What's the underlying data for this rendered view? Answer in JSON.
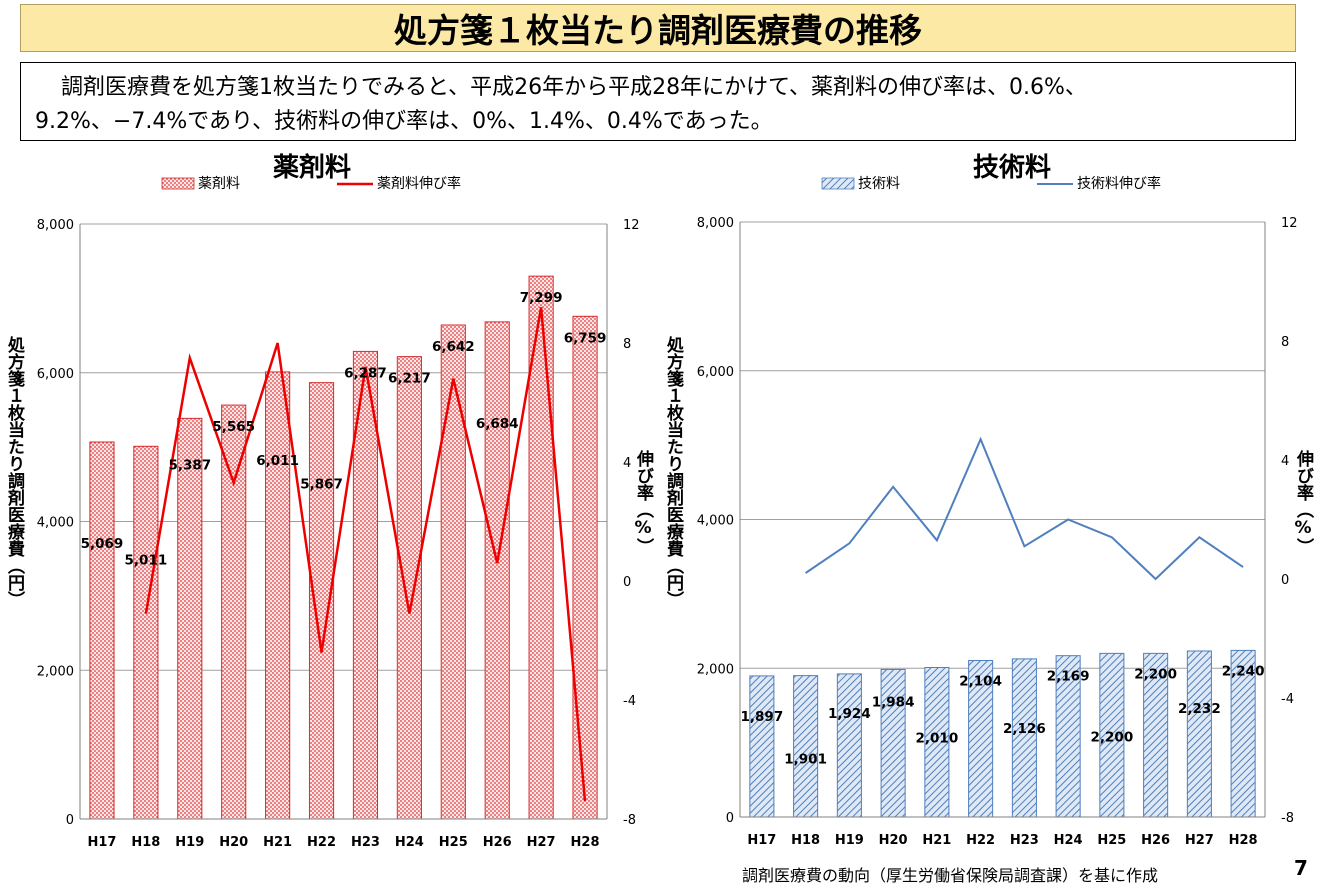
{
  "header": {
    "title": "処方箋１枚当たり調剤医療費の推移",
    "summary_line1": "調剤医療費を処方箋1枚当たりでみると、平成26年から平成28年にかけて、薬剤料の伸び率は、0.6%、",
    "summary_line2": "9.2%、−7.4%であり、技術料の伸び率は、0%、1.4%、0.4%であった。"
  },
  "footer": {
    "source": "調剤医療費の動向（厚生労働省保険局調査課）を基に作成",
    "page_number": "7"
  },
  "colors": {
    "drug_bar": "#f4a6a6",
    "drug_line": "#ee0000",
    "tech_bar": "#7fa3d0",
    "tech_line": "#4f7fbf"
  },
  "chart_data": [
    {
      "type": "bar",
      "title": "薬剤料",
      "categories": [
        "H17",
        "H18",
        "H19",
        "H20",
        "H21",
        "H22",
        "H23",
        "H24",
        "H25",
        "H26",
        "H27",
        "H28"
      ],
      "series": [
        {
          "name": "薬剤料",
          "axis": "left",
          "values": [
            5069,
            5011,
            5387,
            5565,
            6011,
            5867,
            6287,
            6217,
            6642,
            6684,
            7299,
            6759
          ]
        },
        {
          "name": "薬剤料伸び率",
          "type": "line",
          "axis": "right",
          "values": [
            null,
            -1.1,
            7.5,
            3.3,
            8.0,
            -2.4,
            7.2,
            -1.1,
            6.8,
            0.6,
            9.2,
            -7.4
          ]
        }
      ],
      "data_labels": [
        "5,069",
        "5,011",
        "5,387",
        "5,565",
        "6,011",
        "5,867",
        "6,287",
        "6,217",
        "6,642",
        "6,684",
        "7,299",
        "6,759"
      ],
      "ylabel": "処方箋１枚当たり調剤医療費（円）",
      "y2label": "伸び率（%）",
      "ylim": [
        0,
        8000
      ],
      "y2lim": [
        -8,
        12
      ],
      "yticks": [
        "0",
        "2,000",
        "4,000",
        "6,000",
        "8,000"
      ],
      "y2ticks": [
        "-8",
        "-4",
        "0",
        "4",
        "8",
        "12"
      ],
      "grid": true,
      "legend": "top"
    },
    {
      "type": "bar",
      "title": "技術料",
      "categories": [
        "H17",
        "H18",
        "H19",
        "H20",
        "H21",
        "H22",
        "H23",
        "H24",
        "H25",
        "H26",
        "H27",
        "H28"
      ],
      "series": [
        {
          "name": "技術料",
          "axis": "left",
          "values": [
            1897,
            1901,
            1924,
            1984,
            2010,
            2104,
            2126,
            2169,
            2200,
            2200,
            2232,
            2240
          ]
        },
        {
          "name": "技術料伸び率",
          "type": "line",
          "axis": "right",
          "values": [
            null,
            0.2,
            1.2,
            3.1,
            1.3,
            4.7,
            1.1,
            2.0,
            1.4,
            0.0,
            1.4,
            0.4
          ]
        }
      ],
      "data_labels": [
        "1,897",
        "1,901",
        "1,924",
        "1,984",
        "2,010",
        "2,104",
        "2,126",
        "2,169",
        "2,200",
        "2,200",
        "2,232",
        "2,240"
      ],
      "ylabel": "処方箋１枚当たり調剤医療費（円）",
      "y2label": "伸び率（%）",
      "ylim": [
        0,
        8000
      ],
      "y2lim": [
        -8,
        12
      ],
      "yticks": [
        "0",
        "2,000",
        "4,000",
        "6,000",
        "8,000"
      ],
      "y2ticks": [
        "-8",
        "-4",
        "0",
        "4",
        "8",
        "12"
      ],
      "grid": true,
      "legend": "top"
    }
  ]
}
